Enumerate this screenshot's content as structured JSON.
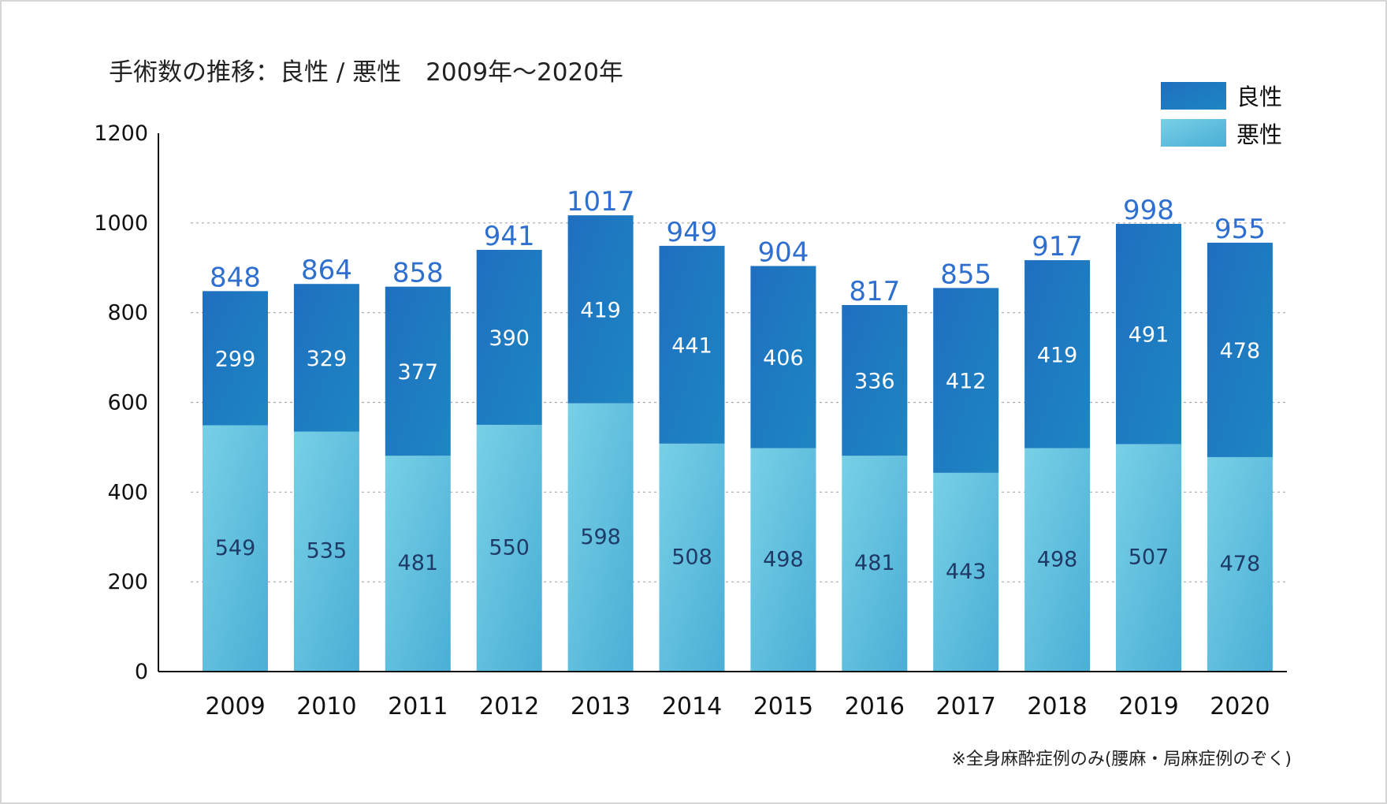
{
  "title": "手術数の推移：良性 / 悪性　2009年〜2020年",
  "note": "※全身麻酔症例のみ(腰麻・局麻症例のぞく)",
  "colors": {
    "benign_top": "#1f6fc0",
    "benign_bottom": "#1e86c2",
    "malignant_top": "#78d0e6",
    "malignant_bottom": "#4aaed6",
    "total_label": "#2e6fcf"
  },
  "chart_data": {
    "type": "bar",
    "stacked": true,
    "title": "手術数の推移：良性 / 悪性　2009年〜2020年",
    "categories": [
      "2009",
      "2010",
      "2011",
      "2012",
      "2013",
      "2014",
      "2015",
      "2016",
      "2017",
      "2018",
      "2019",
      "2020"
    ],
    "series": [
      {
        "name": "悪性",
        "values": [
          549,
          535,
          481,
          550,
          598,
          508,
          498,
          481,
          443,
          498,
          507,
          478
        ]
      },
      {
        "name": "良性",
        "values": [
          299,
          329,
          377,
          390,
          419,
          441,
          406,
          336,
          412,
          419,
          491,
          478
        ]
      }
    ],
    "totals": [
      848,
      864,
      858,
      941,
      1017,
      949,
      904,
      817,
      855,
      917,
      998,
      955
    ],
    "ylim": [
      0,
      1200
    ],
    "yticks": [
      0,
      200,
      400,
      600,
      800,
      1000,
      1200
    ],
    "grid": true,
    "legend": {
      "position": "top-right",
      "items": [
        {
          "label": "良性",
          "series": "良性"
        },
        {
          "label": "悪性",
          "series": "悪性"
        }
      ]
    },
    "xlabel": "",
    "ylabel": ""
  }
}
